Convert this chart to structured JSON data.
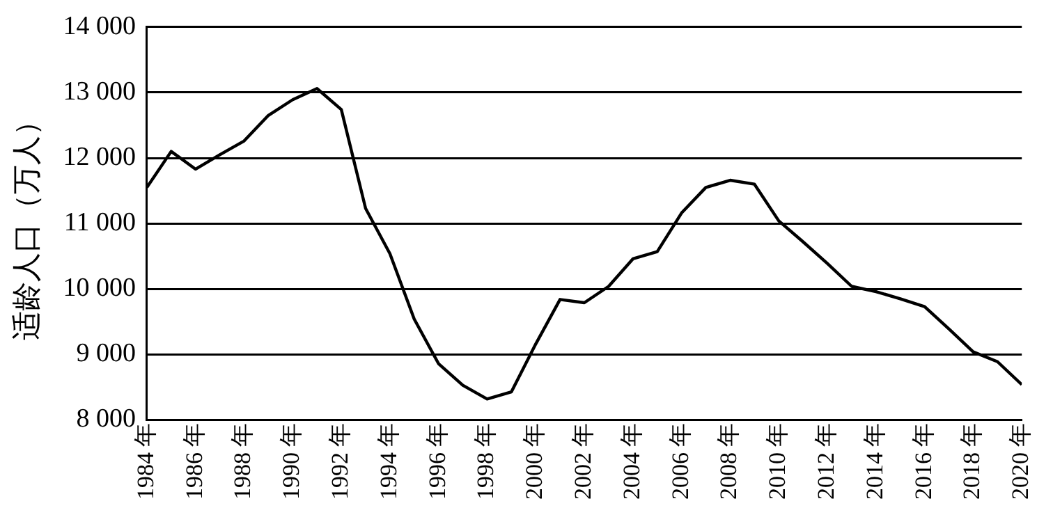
{
  "chart_data": {
    "type": "line",
    "ylabel": "适龄人口（万人）",
    "x": [
      1984,
      1985,
      1986,
      1987,
      1988,
      1989,
      1990,
      1991,
      1992,
      1993,
      1994,
      1995,
      1996,
      1997,
      1998,
      1999,
      2000,
      2001,
      2002,
      2003,
      2004,
      2005,
      2006,
      2007,
      2008,
      2009,
      2010,
      2011,
      2012,
      2013,
      2014,
      2015,
      2016,
      2017,
      2018,
      2019,
      2020
    ],
    "series": [
      {
        "color": "#000000",
        "values": [
          11550,
          12100,
          11830,
          12050,
          12260,
          12650,
          12890,
          13060,
          12740,
          11230,
          10540,
          9540,
          8860,
          8530,
          8320,
          8430,
          9160,
          9840,
          9790,
          10040,
          10460,
          10570,
          11160,
          11550,
          11660,
          11600,
          11040,
          10720,
          10390,
          10040,
          9960,
          9850,
          9730,
          9390,
          9040,
          8890,
          8540
        ]
      }
    ],
    "xlim": [
      1984,
      2020
    ],
    "xticks": [
      {
        "value": 1984,
        "label": "1984 年"
      },
      {
        "value": 1986,
        "label": "1986 年"
      },
      {
        "value": 1988,
        "label": "1988 年"
      },
      {
        "value": 1990,
        "label": "1990 年"
      },
      {
        "value": 1992,
        "label": "1992 年"
      },
      {
        "value": 1994,
        "label": "1994 年"
      },
      {
        "value": 1996,
        "label": "1996 年"
      },
      {
        "value": 1998,
        "label": "1998 年"
      },
      {
        "value": 2000,
        "label": "2000 年"
      },
      {
        "value": 2002,
        "label": "2002 年"
      },
      {
        "value": 2004,
        "label": "2004 年"
      },
      {
        "value": 2006,
        "label": "2006 年"
      },
      {
        "value": 2008,
        "label": "2008 年"
      },
      {
        "value": 2010,
        "label": "2010 年"
      },
      {
        "value": 2012,
        "label": "2012 年"
      },
      {
        "value": 2014,
        "label": "2014 年"
      },
      {
        "value": 2016,
        "label": "2016 年"
      },
      {
        "value": 2018,
        "label": "2018 年"
      },
      {
        "value": 2020,
        "label": "2020 年"
      }
    ],
    "ylim": [
      8000,
      14000
    ],
    "yticks": [
      {
        "value": 8000,
        "label": "8 000"
      },
      {
        "value": 9000,
        "label": "9 000"
      },
      {
        "value": 10000,
        "label": "10 000"
      },
      {
        "value": 11000,
        "label": "11 000"
      },
      {
        "value": 12000,
        "label": "12 000"
      },
      {
        "value": 13000,
        "label": "13 000"
      },
      {
        "value": 14000,
        "label": "14 000"
      }
    ],
    "grid": "y",
    "legend": false,
    "marker": "none",
    "line_style": "solid"
  }
}
